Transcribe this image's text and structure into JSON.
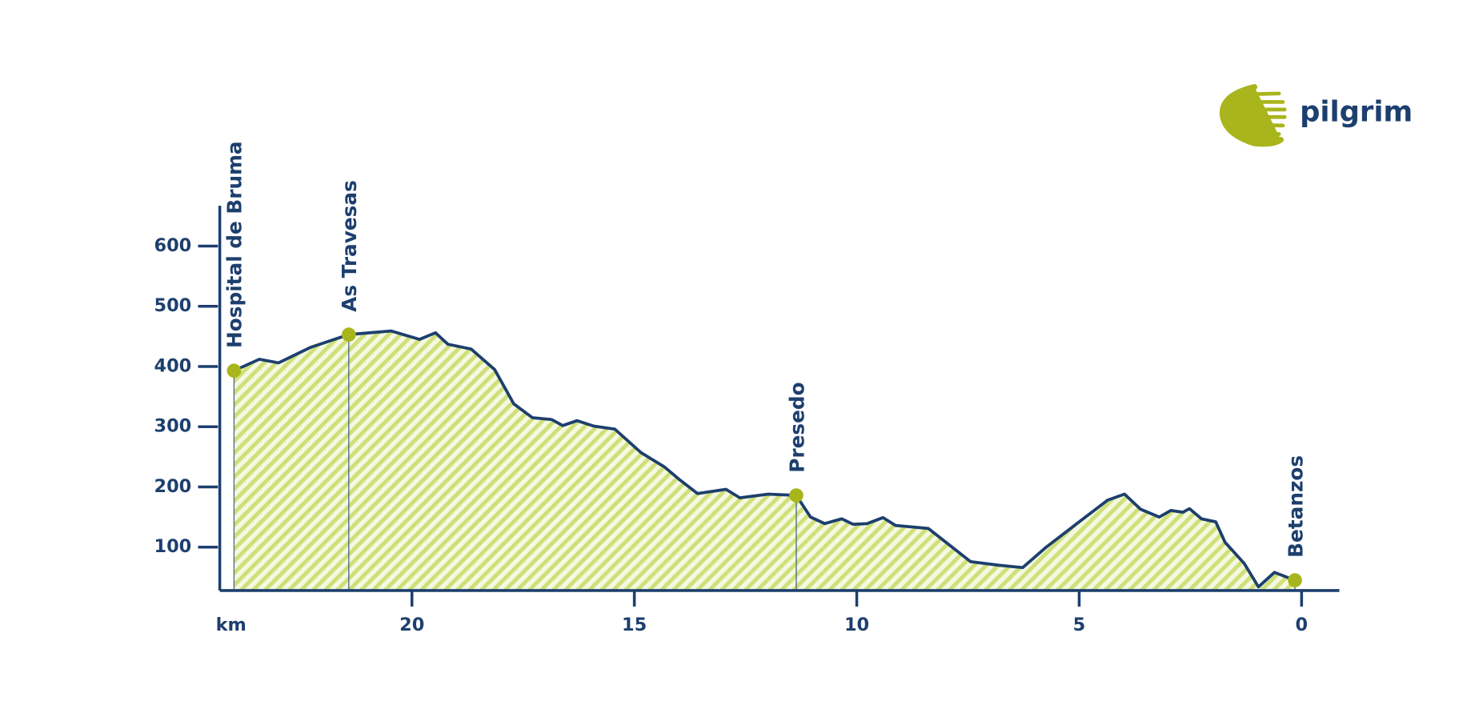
{
  "chart_data": {
    "type": "area",
    "x_label": "km",
    "x": [
      24.0,
      23.43,
      23.0,
      22.27,
      21.42,
      20.47,
      19.83,
      19.47,
      19.19,
      18.67,
      18.14,
      17.71,
      17.29,
      16.86,
      16.61,
      16.29,
      15.91,
      15.44,
      14.85,
      14.32,
      14.0,
      13.58,
      12.94,
      12.63,
      11.99,
      11.36,
      11.04,
      10.72,
      10.34,
      10.08,
      9.77,
      9.41,
      9.13,
      8.39,
      7.44,
      6.8,
      6.27,
      5.74,
      5.0,
      4.36,
      3.98,
      3.62,
      3.2,
      2.94,
      2.67,
      2.52,
      2.25,
      1.93,
      1.72,
      1.29,
      0.97,
      0.61,
      0.15
    ],
    "values": [
      393,
      412,
      406,
      432,
      453,
      459,
      445,
      456,
      437,
      429,
      395,
      338,
      315,
      312,
      302,
      310,
      301,
      296,
      257,
      233,
      213,
      189,
      196,
      182,
      188,
      186,
      150,
      139,
      147,
      138,
      139,
      149,
      136,
      131,
      76,
      70,
      66,
      100,
      142,
      178,
      188,
      163,
      150,
      161,
      158,
      164,
      147,
      142,
      108,
      73,
      34,
      58,
      45
    ],
    "line_color": "#1d3f6e",
    "fill_color": "#cfe07a",
    "marker_color": "#a9b51c",
    "waypoints": [
      {
        "name": "Hospital de Bruma",
        "x": 24.0,
        "value": 393
      },
      {
        "name": "As Travesas",
        "x": 21.42,
        "value": 453
      },
      {
        "name": "Presedo",
        "x": 11.36,
        "value": 186
      },
      {
        "name": "Betanzos",
        "x": 0.15,
        "value": 45
      }
    ],
    "xlim": [
      24.32,
      -0.85
    ],
    "ylim": [
      28,
      667
    ],
    "xticks": [
      20,
      15,
      10,
      5,
      0
    ],
    "yticks": [
      100,
      200,
      300,
      400,
      500,
      600
    ]
  },
  "logo": "pilgrim"
}
